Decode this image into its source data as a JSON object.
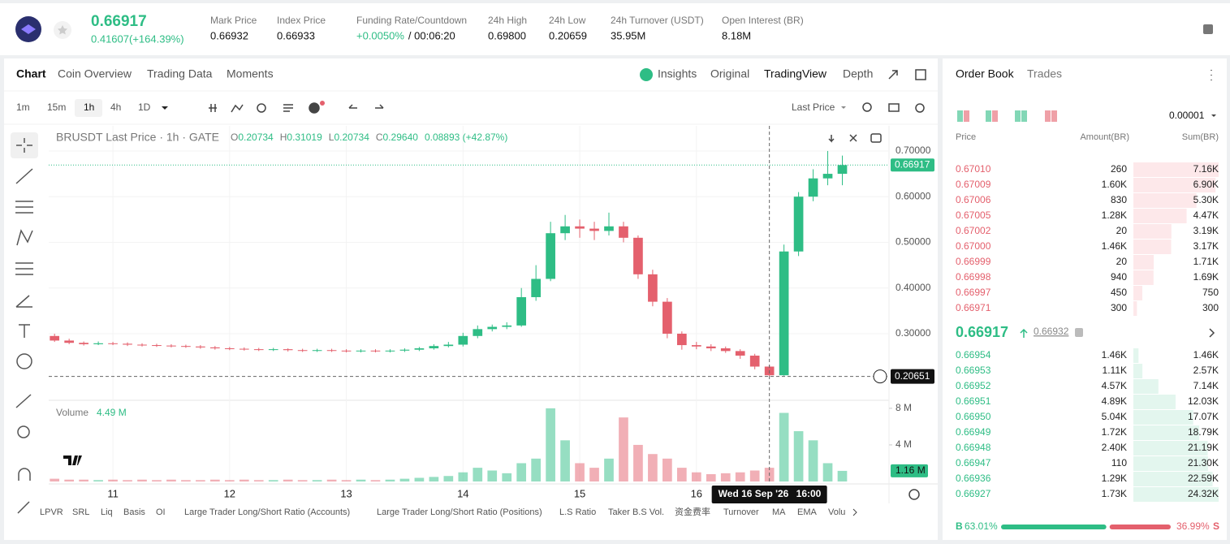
{
  "header": {
    "price": "0.66917",
    "change": "0.41607(+164.39%)",
    "stats": [
      {
        "label": "Mark Price",
        "value": "0.66932"
      },
      {
        "label": "Index Price",
        "value": "0.66933"
      },
      {
        "label": "Funding Rate/Countdown",
        "value": "+0.0050%",
        "extra": "/ 00:06:20"
      },
      {
        "label": "24h High",
        "value": "0.69800"
      },
      {
        "label": "24h Low",
        "value": "0.20659"
      },
      {
        "label": "24h Turnover (USDT)",
        "value": "35.95M"
      },
      {
        "label": "Open Interest (BR)",
        "value": "8.18M"
      }
    ]
  },
  "tabs": [
    "Chart",
    "Coin Overview",
    "Trading Data",
    "Moments"
  ],
  "views": [
    "Insights",
    "Original",
    "TradingView",
    "Depth"
  ],
  "intervals": [
    "1m",
    "15m",
    "1h",
    "4h",
    "1D"
  ],
  "price_source": "Last Price",
  "indicators": [
    "LPVR",
    "SRL",
    "Liq",
    "Basis",
    "OI",
    "Large Trader Long/Short Ratio (Accounts)",
    "Large Trader Long/Short Ratio (Positions)",
    "L.S Ratio",
    "Taker B.S Vol.",
    "资金费率",
    "Turnover",
    "MA",
    "EMA",
    "Volu"
  ],
  "chart_data": {
    "type": "candlestick",
    "title": "BRUSDT Last Price · 1h · GATE",
    "legend": [
      {
        "label": "O",
        "value": "0.20734"
      },
      {
        "label": "H",
        "value": "0.31019"
      },
      {
        "label": "L",
        "value": "0.20734"
      },
      {
        "label": "C",
        "value": "0.29640"
      }
    ],
    "change": "0.08893 (+42.87%)",
    "up_color": "#2ebd85",
    "down_color": "#e4606d",
    "grid": true,
    "x": [
      10.5,
      10.625,
      10.75,
      10.875,
      11,
      11.125,
      11.25,
      11.375,
      11.5,
      11.625,
      11.75,
      11.875,
      12,
      12.125,
      12.25,
      12.375,
      12.5,
      12.625,
      12.75,
      12.875,
      13,
      13.125,
      13.25,
      13.375,
      13.5,
      13.625,
      13.75,
      13.875,
      14,
      14.125,
      14.25,
      14.375,
      14.5,
      14.625,
      14.75,
      14.875,
      15,
      15.125,
      15.25,
      15.375,
      15.5,
      15.625,
      15.75,
      15.875,
      16,
      16.125,
      16.25,
      16.375,
      16.5,
      16.625,
      16.75,
      16.875,
      17,
      17.125,
      17.25
    ],
    "open": [
      0.295,
      0.285,
      0.28,
      0.277,
      0.279,
      0.278,
      0.276,
      0.275,
      0.274,
      0.273,
      0.272,
      0.27,
      0.268,
      0.267,
      0.266,
      0.265,
      0.266,
      0.264,
      0.263,
      0.264,
      0.263,
      0.262,
      0.263,
      0.262,
      0.263,
      0.265,
      0.268,
      0.273,
      0.276,
      0.295,
      0.31,
      0.315,
      0.318,
      0.38,
      0.42,
      0.52,
      0.535,
      0.53,
      0.525,
      0.535,
      0.51,
      0.43,
      0.37,
      0.3,
      0.275,
      0.272,
      0.268,
      0.262,
      0.252,
      0.228,
      0.209,
      0.48,
      0.6,
      0.64,
      0.65
    ],
    "high": [
      0.3,
      0.289,
      0.283,
      0.283,
      0.282,
      0.281,
      0.279,
      0.278,
      0.277,
      0.276,
      0.275,
      0.273,
      0.271,
      0.27,
      0.269,
      0.269,
      0.268,
      0.267,
      0.267,
      0.267,
      0.266,
      0.266,
      0.266,
      0.266,
      0.268,
      0.271,
      0.277,
      0.282,
      0.302,
      0.318,
      0.32,
      0.325,
      0.4,
      0.45,
      0.545,
      0.56,
      0.55,
      0.545,
      0.565,
      0.545,
      0.515,
      0.44,
      0.378,
      0.305,
      0.282,
      0.277,
      0.272,
      0.266,
      0.256,
      0.232,
      0.495,
      0.61,
      0.66,
      0.7,
      0.69
    ],
    "low": [
      0.282,
      0.277,
      0.274,
      0.275,
      0.275,
      0.273,
      0.272,
      0.271,
      0.27,
      0.269,
      0.267,
      0.265,
      0.264,
      0.263,
      0.262,
      0.262,
      0.261,
      0.26,
      0.26,
      0.26,
      0.259,
      0.259,
      0.259,
      0.259,
      0.26,
      0.262,
      0.265,
      0.27,
      0.272,
      0.29,
      0.305,
      0.31,
      0.315,
      0.372,
      0.415,
      0.505,
      0.51,
      0.505,
      0.515,
      0.5,
      0.42,
      0.36,
      0.29,
      0.265,
      0.266,
      0.262,
      0.258,
      0.245,
      0.222,
      0.20651,
      0.208,
      0.47,
      0.59,
      0.625,
      0.625
    ],
    "close": [
      0.285,
      0.28,
      0.277,
      0.279,
      0.278,
      0.276,
      0.275,
      0.274,
      0.273,
      0.272,
      0.27,
      0.268,
      0.267,
      0.266,
      0.265,
      0.266,
      0.264,
      0.263,
      0.264,
      0.263,
      0.262,
      0.263,
      0.262,
      0.263,
      0.265,
      0.268,
      0.273,
      0.276,
      0.295,
      0.31,
      0.315,
      0.318,
      0.38,
      0.42,
      0.52,
      0.535,
      0.53,
      0.525,
      0.535,
      0.51,
      0.43,
      0.37,
      0.3,
      0.275,
      0.272,
      0.268,
      0.262,
      0.252,
      0.228,
      0.209,
      0.48,
      0.6,
      0.64,
      0.65,
      0.66917
    ],
    "xlim": [
      10.45,
      17.65
    ],
    "xticks": [
      11,
      12,
      13,
      14,
      15,
      16
    ],
    "ylim": [
      0.156,
      0.755
    ],
    "yticks": [
      {
        "value": 0.3,
        "label": "0.30000"
      },
      {
        "value": 0.4,
        "label": "0.40000"
      },
      {
        "value": 0.5,
        "label": "0.50000"
      },
      {
        "value": 0.6,
        "label": "0.60000"
      },
      {
        "value": 0.7,
        "label": "0.70000"
      }
    ],
    "last_price": {
      "value": 0.66917,
      "label": "0.66917"
    },
    "crosshair_price": {
      "value": 0.20651,
      "label": "0.20651"
    },
    "crosshair_date": "Wed 16 Sep '26",
    "crosshair_time": "16:00",
    "volume": {
      "title": "Volume",
      "last": "4.49 M",
      "values": [
        0.3,
        0.2,
        0.2,
        0.15,
        0.2,
        0.15,
        0.2,
        0.15,
        0.2,
        0.15,
        0.15,
        0.2,
        0.15,
        0.2,
        0.15,
        0.15,
        0.2,
        0.15,
        0.15,
        0.2,
        0.15,
        0.2,
        0.15,
        0.2,
        0.3,
        0.4,
        0.5,
        0.6,
        1.0,
        1.5,
        1.2,
        0.9,
        2.0,
        2.5,
        8.0,
        4.5,
        2.0,
        1.5,
        2.5,
        7.0,
        4.0,
        3.0,
        2.5,
        1.5,
        1.0,
        0.8,
        0.9,
        1.0,
        1.2,
        1.5,
        7.5,
        5.5,
        4.5,
        2.0,
        1.16
      ],
      "ylim": [
        0,
        8.7
      ],
      "yticks": [
        {
          "value": 4,
          "label": "4 M"
        },
        {
          "value": 8,
          "label": "8 M"
        }
      ],
      "current": {
        "value": 1.16,
        "label": "1.16 M"
      }
    }
  },
  "order_book": {
    "tabs": [
      "Order Book",
      "Trades"
    ],
    "precision": "0.00001",
    "columns": [
      "Price",
      "Amount(BR)",
      "Sum(BR)"
    ],
    "asks": [
      {
        "price": "0.67010",
        "amount": "260",
        "sum": {
          "value": 7160,
          "label": "7.16K"
        }
      },
      {
        "price": "0.67009",
        "amount": "1.60K",
        "sum": {
          "value": 6900,
          "label": "6.90K"
        }
      },
      {
        "price": "0.67006",
        "amount": "830",
        "sum": {
          "value": 5300,
          "label": "5.30K"
        }
      },
      {
        "price": "0.67005",
        "amount": "1.28K",
        "sum": {
          "value": 4470,
          "label": "4.47K"
        }
      },
      {
        "price": "0.67002",
        "amount": "20",
        "sum": {
          "value": 3190,
          "label": "3.19K"
        }
      },
      {
        "price": "0.67000",
        "amount": "1.46K",
        "sum": {
          "value": 3170,
          "label": "3.17K"
        }
      },
      {
        "price": "0.66999",
        "amount": "20",
        "sum": {
          "value": 1710,
          "label": "1.71K"
        }
      },
      {
        "price": "0.66998",
        "amount": "940",
        "sum": {
          "value": 1690,
          "label": "1.69K"
        }
      },
      {
        "price": "0.66997",
        "amount": "450",
        "sum": 750
      },
      {
        "price": "0.66971",
        "amount": "300",
        "sum": 300
      }
    ],
    "mid_price": "0.66917",
    "mark_price": "0.66932",
    "bids": [
      {
        "price": "0.66954",
        "amount": "1.46K",
        "sum": {
          "value": 1460,
          "label": "1.46K"
        }
      },
      {
        "price": "0.66953",
        "amount": "1.11K",
        "sum": {
          "value": 2570,
          "label": "2.57K"
        }
      },
      {
        "price": "0.66952",
        "amount": "4.57K",
        "sum": {
          "value": 7140,
          "label": "7.14K"
        }
      },
      {
        "price": "0.66951",
        "amount": "4.89K",
        "sum": {
          "value": 12030,
          "label": "12.03K"
        }
      },
      {
        "price": "0.66950",
        "amount": "5.04K",
        "sum": {
          "value": 17070,
          "label": "17.07K"
        }
      },
      {
        "price": "0.66949",
        "amount": "1.72K",
        "sum": {
          "value": 18790,
          "label": "18.79K"
        }
      },
      {
        "price": "0.66948",
        "amount": "2.40K",
        "sum": {
          "value": 21190,
          "label": "21.19K"
        }
      },
      {
        "price": "0.66947",
        "amount": "110",
        "sum": {
          "value": 21300,
          "label": "21.30K"
        }
      },
      {
        "price": "0.66936",
        "amount": "1.29K",
        "sum": {
          "value": 22590,
          "label": "22.59K"
        }
      },
      {
        "price": "0.66927",
        "amount": "1.73K",
        "sum": {
          "value": 24320,
          "label": "24.32K"
        }
      }
    ],
    "buy": {
      "letter": "B",
      "share": {
        "value": 63.01,
        "label": "63.01%"
      }
    },
    "sell": {
      "letter": "S",
      "share": {
        "value": 36.99,
        "label": "36.99%"
      }
    }
  }
}
